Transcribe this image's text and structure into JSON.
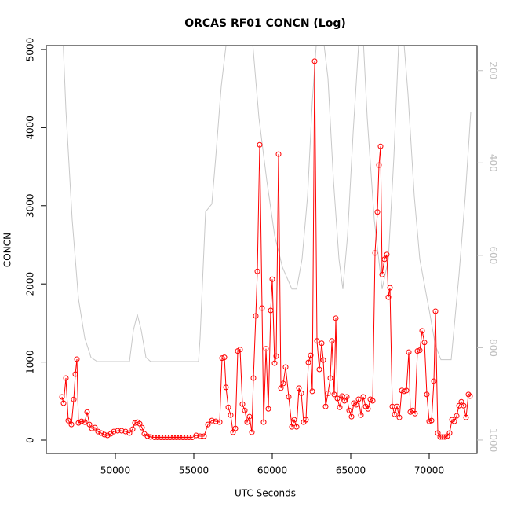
{
  "chart_data": {
    "type": "line",
    "title": "ORCAS RF01 CONCN (Log)",
    "x_label": "UTC Seconds",
    "y_label": "CONCN",
    "xlim": [
      45600,
      73050
    ],
    "xticks": [
      50000,
      55000,
      60000,
      65000,
      70000
    ],
    "ylim": [
      -171,
      5050
    ],
    "yticks": [
      0,
      1000,
      2000,
      3000,
      4000,
      5000
    ],
    "y2lim": [
      1029,
      146
    ],
    "y2ticks": [
      200,
      400,
      600,
      800,
      1000
    ],
    "y2_color": "#bebebe",
    "series": [
      {
        "color": "#ff0000",
        "markers": true,
        "x": [
          46600,
          46700,
          46850,
          47000,
          47200,
          47350,
          47450,
          47550,
          47650,
          47850,
          48050,
          48200,
          48350,
          48500,
          48700,
          48900,
          49100,
          49300,
          49500,
          49700,
          49900,
          50150,
          50400,
          50650,
          50900,
          51100,
          51250,
          51400,
          51550,
          51700,
          51850,
          52050,
          52250,
          52500,
          52700,
          52900,
          53100,
          53300,
          53500,
          53700,
          53900,
          54100,
          54300,
          54500,
          54700,
          54900,
          55150,
          55400,
          55650,
          55900,
          56150,
          56400,
          56650,
          56800,
          56950,
          57050,
          57200,
          57350,
          57500,
          57650,
          57800,
          57950,
          58100,
          58250,
          58400,
          58550,
          58700,
          58800,
          58950,
          59050,
          59200,
          59350,
          59450,
          59600,
          59750,
          59900,
          60000,
          60150,
          60250,
          60400,
          60550,
          60700,
          60850,
          61050,
          61250,
          61400,
          61550,
          61700,
          61850,
          62000,
          62150,
          62300,
          62450,
          62550,
          62700,
          62850,
          63000,
          63150,
          63250,
          63400,
          63550,
          63700,
          63800,
          63950,
          64050,
          64150,
          64300,
          64450,
          64600,
          64750,
          64900,
          65050,
          65200,
          65350,
          65500,
          65650,
          65800,
          65950,
          66100,
          66250,
          66400,
          66550,
          66700,
          66800,
          66900,
          67000,
          67150,
          67300,
          67400,
          67500,
          67650,
          67800,
          67950,
          68100,
          68250,
          68400,
          68550,
          68700,
          68800,
          68950,
          69100,
          69250,
          69400,
          69550,
          69700,
          69850,
          70000,
          70150,
          70300,
          70400,
          70550,
          70700,
          70850,
          71000,
          71150,
          71300,
          71450,
          71600,
          71750,
          71900,
          72050,
          72200,
          72350,
          72500,
          72600
        ],
        "values": [
          553,
          473,
          795,
          250,
          200,
          520,
          845,
          1036,
          220,
          240,
          230,
          360,
          200,
          150,
          160,
          110,
          90,
          70,
          60,
          80,
          110,
          120,
          120,
          110,
          90,
          140,
          220,
          230,
          210,
          160,
          80,
          50,
          40,
          35,
          35,
          35,
          35,
          35,
          35,
          35,
          35,
          35,
          35,
          35,
          35,
          35,
          60,
          50,
          50,
          200,
          250,
          240,
          230,
          1050,
          1060,
          675,
          420,
          320,
          100,
          150,
          1140,
          1160,
          460,
          380,
          230,
          300,
          100,
          795,
          1590,
          2160,
          3780,
          1690,
          230,
          1170,
          400,
          1660,
          2060,
          985,
          1075,
          3660,
          665,
          725,
          935,
          553,
          170,
          260,
          170,
          665,
          600,
          230,
          260,
          995,
          1085,
          625,
          4850,
          1270,
          905,
          1240,
          1025,
          430,
          600,
          795,
          1270,
          585,
          1560,
          533,
          420,
          563,
          503,
          553,
          380,
          300,
          473,
          453,
          523,
          320,
          553,
          430,
          400,
          523,
          503,
          2395,
          2920,
          3520,
          3760,
          2120,
          2315,
          2375,
          1830,
          1950,
          430,
          330,
          430,
          290,
          635,
          625,
          635,
          1125,
          360,
          380,
          340,
          1140,
          1150,
          1400,
          1250,
          585,
          240,
          250,
          755,
          1650,
          90,
          40,
          40,
          40,
          50,
          90,
          260,
          240,
          310,
          440,
          490,
          440,
          290,
          585,
          563
        ]
      },
      {
        "color": "#c8c8c8",
        "axis": "y2",
        "markers": false,
        "x": [
          46650,
          46850,
          47250,
          47650,
          48050,
          48450,
          48850,
          50900,
          51150,
          51400,
          51650,
          51950,
          52250,
          55300,
          55400,
          55750,
          56150,
          56400,
          56750,
          57050,
          57400,
          58650,
          59150,
          59650,
          60150,
          60650,
          61250,
          61550,
          61900,
          62250,
          62550,
          62800,
          63150,
          63550,
          63900,
          64250,
          64500,
          64800,
          65150,
          65500,
          65750,
          66050,
          66500,
          67000,
          67400,
          67750,
          68050,
          68300,
          68650,
          69050,
          69400,
          69750,
          70050,
          70400,
          70750,
          71400,
          71900,
          72300,
          72650
        ],
        "values": [
          120,
          285,
          523,
          694,
          779,
          821,
          830,
          830,
          762,
          728,
          762,
          821,
          830,
          830,
          779,
          506,
          489,
          387,
          234,
          146,
          100,
          100,
          302,
          438,
          557,
          626,
          673,
          673,
          608,
          472,
          268,
          146,
          100,
          217,
          438,
          608,
          673,
          557,
          336,
          146,
          100,
          302,
          523,
          673,
          608,
          387,
          146,
          100,
          251,
          472,
          608,
          673,
          728,
          796,
          826,
          826,
          642,
          472,
          290
        ]
      }
    ]
  }
}
